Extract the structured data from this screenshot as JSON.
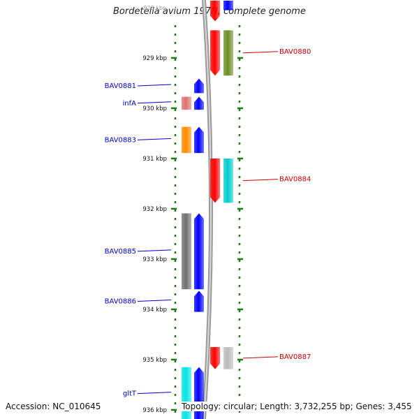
{
  "title": "Bordetella avium 197N, complete genome",
  "top_tick_partial": "928 kbp",
  "footer": {
    "accession": "Accession: NC_010645",
    "summary": "Topology: circular; Length: 3,732,255 bp; Genes: 3,455"
  },
  "colors": {
    "forward_label": "#0000cc",
    "reverse_label": "#cc0000",
    "tick": "#1a7a1a",
    "forward_arrow": "#0000ff",
    "reverse_arrow": "#ff0000",
    "backbone": "#888888"
  },
  "ruler": [
    {
      "label": "929 kbp",
      "kbp": 929
    },
    {
      "label": "930 kbp",
      "kbp": 930
    },
    {
      "label": "931 kbp",
      "kbp": 931
    },
    {
      "label": "932 kbp",
      "kbp": 932
    },
    {
      "label": "933 kbp",
      "kbp": 933
    },
    {
      "label": "934 kbp",
      "kbp": 934
    },
    {
      "label": "935 kbp",
      "kbp": 935
    },
    {
      "label": "936 kbp",
      "kbp": 936
    }
  ],
  "genes": [
    {
      "name": "",
      "strand": "reverse",
      "start": 927.86,
      "end": 928.27,
      "color": "#ff0000"
    },
    {
      "name": "",
      "strand": "reverse",
      "start": 927.86,
      "end": 928.05,
      "color": "#0000ff"
    },
    {
      "name": "BAV0880",
      "strand": "reverse",
      "start": 928.45,
      "end": 929.35,
      "color": "#6b8e23",
      "label": true
    },
    {
      "name": "",
      "strand": "reverse",
      "start": 928.45,
      "end": 929.35,
      "color": "#ff0000"
    },
    {
      "name": "BAV0881",
      "strand": "forward",
      "start": 929.41,
      "end": 929.7,
      "color": "#0000ff",
      "label": true
    },
    {
      "name": "infA",
      "strand": "forward",
      "start": 929.77,
      "end": 930.03,
      "color": "#0000ff",
      "label": true
    },
    {
      "name": "",
      "strand": "forward",
      "start": 929.77,
      "end": 930.03,
      "color": "#e07070"
    },
    {
      "name": "BAV0883",
      "strand": "forward",
      "start": 930.37,
      "end": 930.89,
      "color": "#ff8c00",
      "label": true
    },
    {
      "name": "",
      "strand": "forward",
      "start": 930.37,
      "end": 930.89,
      "color": "#0000ff"
    },
    {
      "name": "BAV0884",
      "strand": "reverse",
      "start": 931.0,
      "end": 931.88,
      "color": "#00cccc",
      "label": true
    },
    {
      "name": "",
      "strand": "reverse",
      "start": 931.0,
      "end": 931.88,
      "color": "#ff0000"
    },
    {
      "name": "BAV0885",
      "strand": "forward",
      "start": 932.09,
      "end": 933.6,
      "color": "#707070",
      "label": true
    },
    {
      "name": "",
      "strand": "forward",
      "start": 932.09,
      "end": 933.6,
      "color": "#0000ff"
    },
    {
      "name": "BAV0886",
      "strand": "forward",
      "start": 933.63,
      "end": 934.05,
      "color": "#0000ff",
      "label": true
    },
    {
      "name": "BAV0887",
      "strand": "reverse",
      "start": 934.75,
      "end": 935.19,
      "color": "#bbbbbb",
      "label": true
    },
    {
      "name": "",
      "strand": "reverse",
      "start": 934.75,
      "end": 935.19,
      "color": "#ff0000"
    },
    {
      "name": "gltT",
      "strand": "forward",
      "start": 935.15,
      "end": 936.2,
      "color": "#00e5e5",
      "label": true
    },
    {
      "name": "",
      "strand": "forward",
      "start": 935.15,
      "end": 936.2,
      "color": "#0000ff"
    }
  ]
}
